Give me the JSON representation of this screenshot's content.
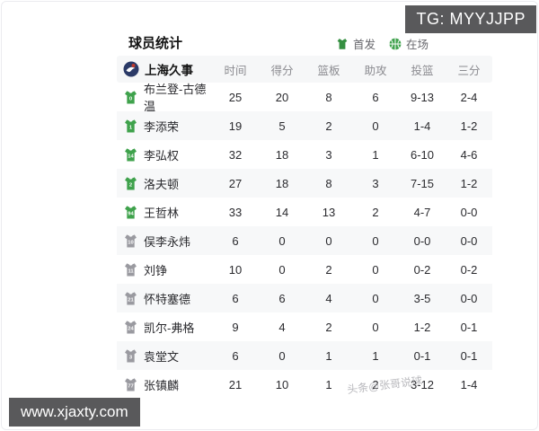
{
  "overlays": {
    "tg_badge": "TG: MYYJJPP",
    "site_watermark": "www.xjaxty.com",
    "diagonal_watermark": "头条@张哥说球"
  },
  "header": {
    "title": "球员统计",
    "legend": [
      {
        "icon": "jersey-icon",
        "label": "首发"
      },
      {
        "icon": "basketball-icon",
        "label": "在场"
      }
    ]
  },
  "table": {
    "team": "上海久事",
    "columns": [
      "时间",
      "得分",
      "篮板",
      "助攻",
      "投篮",
      "三分"
    ],
    "rows": [
      {
        "number": "0",
        "name": "布兰登-古德温",
        "starter": true,
        "stats": [
          "25",
          "20",
          "8",
          "6",
          "9-13",
          "2-4"
        ]
      },
      {
        "number": "1",
        "name": "李添荣",
        "starter": true,
        "stats": [
          "19",
          "5",
          "2",
          "0",
          "1-4",
          "1-2"
        ]
      },
      {
        "number": "14",
        "name": "李弘权",
        "starter": true,
        "stats": [
          "32",
          "18",
          "3",
          "1",
          "6-10",
          "4-6"
        ]
      },
      {
        "number": "2",
        "name": "洛夫顿",
        "starter": true,
        "stats": [
          "27",
          "18",
          "8",
          "3",
          "7-15",
          "1-2"
        ]
      },
      {
        "number": "94",
        "name": "王哲林",
        "starter": true,
        "stats": [
          "33",
          "14",
          "13",
          "2",
          "4-7",
          "0-0"
        ]
      },
      {
        "number": "10",
        "name": "俣李永炜",
        "starter": false,
        "stats": [
          "6",
          "0",
          "0",
          "0",
          "0-0",
          "0-0"
        ]
      },
      {
        "number": "11",
        "name": "刘铮",
        "starter": false,
        "stats": [
          "10",
          "0",
          "2",
          "0",
          "0-2",
          "0-2"
        ]
      },
      {
        "number": "21",
        "name": "怀特塞德",
        "starter": false,
        "stats": [
          "6",
          "6",
          "4",
          "0",
          "3-5",
          "0-0"
        ]
      },
      {
        "number": "24",
        "name": "凯尔-弗格",
        "starter": false,
        "stats": [
          "9",
          "4",
          "2",
          "0",
          "1-2",
          "0-1"
        ]
      },
      {
        "number": "3",
        "name": "袁堂文",
        "starter": false,
        "stats": [
          "6",
          "0",
          "1",
          "1",
          "0-1",
          "0-1"
        ]
      },
      {
        "number": "77",
        "name": "张镇麟",
        "starter": false,
        "stats": [
          "21",
          "10",
          "1",
          "2",
          "3-12",
          "1-4"
        ]
      }
    ]
  },
  "colors": {
    "starter_green": "#3fa24c",
    "bench_gray": "#9a9aa0",
    "badge_bg": "#59595b",
    "stripe_bg": "#f7f8f9"
  }
}
